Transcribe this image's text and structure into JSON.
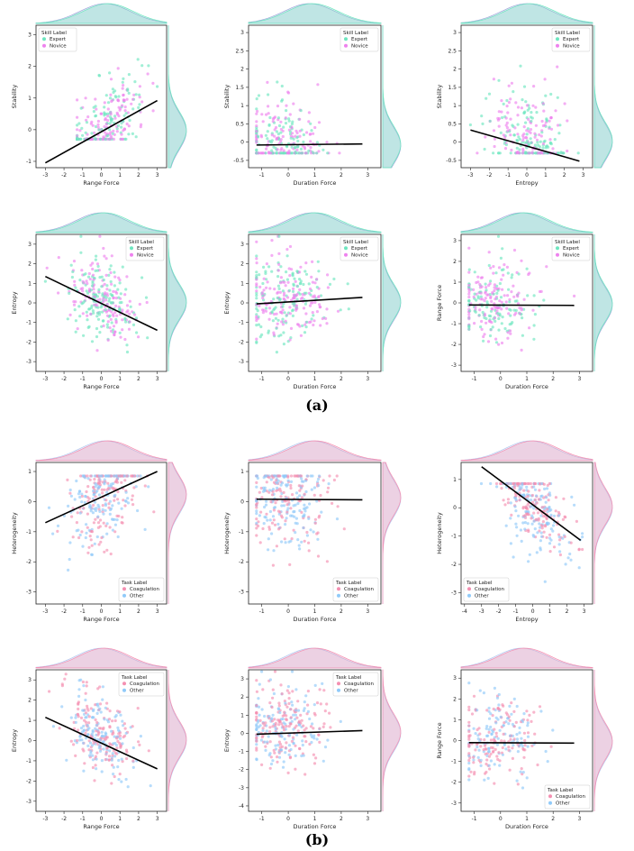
{
  "colors": {
    "expert": "#6ee6c0",
    "novice": "#ee82ee",
    "coagulation": "#f48fb1",
    "other": "#90caf9",
    "regression": "#000000",
    "marginal_fill_expert": "#6ee6c0",
    "marginal_fill_novice": "#9fa8da",
    "marginal_fill_coagulation": "#f48fb1",
    "marginal_fill_other": "#b3c7ee"
  },
  "captions": {
    "a": "(a)",
    "b": "(b)"
  },
  "legend_skill": {
    "title": "Skill Label",
    "items": [
      "Expert",
      "Novice"
    ]
  },
  "legend_task": {
    "title": "Task Label",
    "items": [
      "Coagulation",
      "Other"
    ]
  },
  "chart_data": [
    {
      "id": "a1",
      "group": "skill",
      "type": "scatter",
      "xlabel": "Range Force",
      "ylabel": "Stability",
      "xlim": [
        -3.5,
        3.5
      ],
      "ylim": [
        -1.2,
        3.3
      ],
      "xticks": [
        -3,
        -2,
        -1,
        0,
        1,
        2,
        3
      ],
      "yticks": [
        -1,
        0,
        1,
        2,
        3
      ],
      "fit": {
        "x": [
          -3,
          3
        ],
        "y": [
          -1.05,
          0.92
        ]
      },
      "legend": "top-left",
      "pattern": {
        "cx": 0.2,
        "sx": 1.1,
        "xmin": -1.3,
        "xmax": 3,
        "floor": -0.3,
        "slope": 0.45,
        "base": -0.05,
        "noise": 0.55,
        "n": 260
      }
    },
    {
      "id": "a2",
      "group": "skill",
      "type": "scatter",
      "xlabel": "Duration Force",
      "ylabel": "Stability",
      "xlim": [
        -1.5,
        3.5
      ],
      "ylim": [
        -0.7,
        3.2
      ],
      "xticks": [
        -1,
        0,
        1,
        2,
        3
      ],
      "yticks": [
        -0.5,
        0.0,
        0.5,
        1.0,
        1.5,
        2.0,
        2.5,
        3.0
      ],
      "fit": {
        "x": [
          -1.2,
          2.8
        ],
        "y": [
          -0.08,
          -0.05
        ]
      },
      "legend": "top-right",
      "pattern": {
        "cx": -0.2,
        "sx": 0.8,
        "xmin": -1.2,
        "xmax": 2.8,
        "floor": -0.3,
        "slope": 0.0,
        "base": -0.1,
        "noise": 0.55,
        "n": 260
      }
    },
    {
      "id": "a3",
      "group": "skill",
      "type": "scatter",
      "xlabel": "Entropy",
      "ylabel": "Stability",
      "xlim": [
        -3.5,
        3.5
      ],
      "ylim": [
        -0.7,
        3.2
      ],
      "xticks": [
        -3,
        -2,
        -1,
        0,
        1,
        2,
        3
      ],
      "yticks": [
        -0.5,
        0.0,
        0.5,
        1.0,
        1.5,
        2.0,
        2.5,
        3.0
      ],
      "fit": {
        "x": [
          -3,
          2.8
        ],
        "y": [
          0.33,
          -0.52
        ]
      },
      "legend": "top-right",
      "pattern": {
        "cx": 0.0,
        "sx": 1.0,
        "xmin": -3,
        "xmax": 2.9,
        "floor": -0.3,
        "slope": -0.14,
        "base": 0.0,
        "noise": 0.55,
        "n": 260
      }
    },
    {
      "id": "a4",
      "group": "skill",
      "type": "scatter",
      "xlabel": "Range Force",
      "ylabel": "Entropy",
      "xlim": [
        -3.5,
        3.5
      ],
      "ylim": [
        -3.5,
        3.5
      ],
      "xticks": [
        -3,
        -2,
        -1,
        0,
        1,
        2,
        3
      ],
      "yticks": [
        -3,
        -2,
        -1,
        0,
        1,
        2,
        3
      ],
      "fit": {
        "x": [
          -3,
          3
        ],
        "y": [
          1.35,
          -1.4
        ]
      },
      "legend": "top-right",
      "pattern": {
        "cx": 0.0,
        "sx": 0.9,
        "xmin": -3,
        "xmax": 3,
        "floor": -3,
        "slope": -0.45,
        "base": 0.0,
        "noise": 0.9,
        "n": 300
      }
    },
    {
      "id": "a5",
      "group": "skill",
      "type": "scatter",
      "xlabel": "Duration Force",
      "ylabel": "Entropy",
      "xlim": [
        -1.5,
        3.5
      ],
      "ylim": [
        -3.5,
        3.5
      ],
      "xticks": [
        -1,
        0,
        1,
        2,
        3
      ],
      "yticks": [
        -3,
        -2,
        -1,
        0,
        1,
        2,
        3
      ],
      "fit": {
        "x": [
          -1.2,
          2.8
        ],
        "y": [
          -0.05,
          0.28
        ]
      },
      "legend": "top-right",
      "pattern": {
        "cx": -0.1,
        "sx": 0.8,
        "xmin": -1.2,
        "xmax": 2.8,
        "floor": -3,
        "slope": 0.08,
        "base": 0.0,
        "noise": 1.0,
        "n": 300
      }
    },
    {
      "id": "a6",
      "group": "skill",
      "type": "scatter",
      "xlabel": "Duration Force",
      "ylabel": "Range Force",
      "xlim": [
        -1.5,
        3.5
      ],
      "ylim": [
        -3.3,
        3.3
      ],
      "xticks": [
        -1,
        0,
        1,
        2,
        3
      ],
      "yticks": [
        -3,
        -2,
        -1,
        0,
        1,
        2,
        3
      ],
      "fit": {
        "x": [
          -1.2,
          2.8
        ],
        "y": [
          -0.1,
          -0.12
        ]
      },
      "legend": "top-right",
      "pattern": {
        "cx": -0.2,
        "sx": 0.8,
        "xmin": -1.2,
        "xmax": 2.8,
        "floor": -3,
        "slope": 0.0,
        "base": -0.1,
        "noise": 0.9,
        "n": 260
      }
    },
    {
      "id": "b1",
      "group": "task",
      "type": "scatter",
      "xlabel": "Range Force",
      "ylabel": "Heterogeneity",
      "xlim": [
        -3.5,
        3.5
      ],
      "ylim": [
        -3.4,
        1.3
      ],
      "xticks": [
        -3,
        -2,
        -1,
        0,
        1,
        2,
        3
      ],
      "yticks": [
        -3,
        -2,
        -1,
        0,
        1
      ],
      "fit": {
        "x": [
          -3,
          3
        ],
        "y": [
          -0.7,
          1.0
        ]
      },
      "legend": "bottom-right",
      "pattern": {
        "cx": 0.2,
        "sx": 1.0,
        "xmin": -2.8,
        "xmax": 3,
        "ceil": 0.85,
        "slope": 0.25,
        "base": 0.2,
        "noise": 0.9,
        "n": 300
      }
    },
    {
      "id": "b2",
      "group": "task",
      "type": "scatter",
      "xlabel": "Duration Force",
      "ylabel": "Heterogeneity",
      "xlim": [
        -1.5,
        3.5
      ],
      "ylim": [
        -3.4,
        1.3
      ],
      "xticks": [
        -1,
        0,
        1,
        2,
        3
      ],
      "yticks": [
        -3,
        -2,
        -1,
        0,
        1
      ],
      "fit": {
        "x": [
          -1.2,
          2.8
        ],
        "y": [
          0.08,
          0.06
        ]
      },
      "legend": "bottom-right",
      "pattern": {
        "cx": -0.1,
        "sx": 0.8,
        "xmin": -1.2,
        "xmax": 2.8,
        "ceil": 0.85,
        "slope": 0.0,
        "base": 0.1,
        "noise": 0.9,
        "n": 300
      }
    },
    {
      "id": "b3",
      "group": "task",
      "type": "scatter",
      "xlabel": "Entropy",
      "ylabel": "Heterogeneity",
      "xlim": [
        -4.2,
        3.5
      ],
      "ylim": [
        -3.4,
        1.6
      ],
      "xticks": [
        -4,
        -3,
        -2,
        -1,
        0,
        1,
        2,
        3
      ],
      "yticks": [
        -3,
        -2,
        -1,
        0,
        1
      ],
      "fit": {
        "x": [
          -3,
          2.8
        ],
        "y": [
          1.45,
          -1.15
        ]
      },
      "legend": "bottom-left",
      "pattern": {
        "cx": 0.2,
        "sx": 1.1,
        "xmin": -3.8,
        "xmax": 2.9,
        "ceil": 0.85,
        "slope": -0.45,
        "base": 0.0,
        "noise": 0.7,
        "n": 300
      }
    },
    {
      "id": "b4",
      "group": "task",
      "type": "scatter",
      "xlabel": "Range Force",
      "ylabel": "Entropy",
      "xlim": [
        -3.5,
        3.5
      ],
      "ylim": [
        -3.5,
        3.5
      ],
      "xticks": [
        -3,
        -2,
        -1,
        0,
        1,
        2,
        3
      ],
      "yticks": [
        -3,
        -2,
        -1,
        0,
        1,
        2,
        3
      ],
      "fit": {
        "x": [
          -3,
          3
        ],
        "y": [
          1.15,
          -1.4
        ]
      },
      "legend": "top-right",
      "pattern": {
        "cx": 0.0,
        "sx": 0.9,
        "xmin": -3,
        "xmax": 3,
        "floor": -3,
        "slope": -0.45,
        "base": 0.0,
        "noise": 0.9,
        "n": 300
      }
    },
    {
      "id": "b5",
      "group": "task",
      "type": "scatter",
      "xlabel": "Duration Force",
      "ylabel": "Entropy",
      "xlim": [
        -1.5,
        3.5
      ],
      "ylim": [
        -4.3,
        3.5
      ],
      "xticks": [
        -1,
        0,
        1,
        2,
        3
      ],
      "yticks": [
        -4,
        -3,
        -2,
        -1,
        0,
        1,
        2,
        3
      ],
      "fit": {
        "x": [
          -1.2,
          2.8
        ],
        "y": [
          -0.05,
          0.15
        ]
      },
      "legend": "top-right",
      "pattern": {
        "cx": -0.1,
        "sx": 0.8,
        "xmin": -1.2,
        "xmax": 2.8,
        "floor": -3,
        "slope": 0.05,
        "base": 0.0,
        "noise": 1.0,
        "n": 300
      }
    },
    {
      "id": "b6",
      "group": "task",
      "type": "scatter",
      "xlabel": "Duration Force",
      "ylabel": "Range Force",
      "xlim": [
        -1.5,
        3.5
      ],
      "ylim": [
        -3.4,
        3.4
      ],
      "xticks": [
        -1,
        0,
        1,
        2,
        3
      ],
      "yticks": [
        -3,
        -2,
        -1,
        0,
        1,
        2,
        3
      ],
      "fit": {
        "x": [
          -1.2,
          2.8
        ],
        "y": [
          -0.1,
          -0.12
        ]
      },
      "legend": "bottom-right",
      "pattern": {
        "cx": -0.2,
        "sx": 0.8,
        "xmin": -1.2,
        "xmax": 2.8,
        "floor": -3,
        "slope": 0.0,
        "base": -0.1,
        "noise": 0.9,
        "n": 260
      }
    }
  ]
}
